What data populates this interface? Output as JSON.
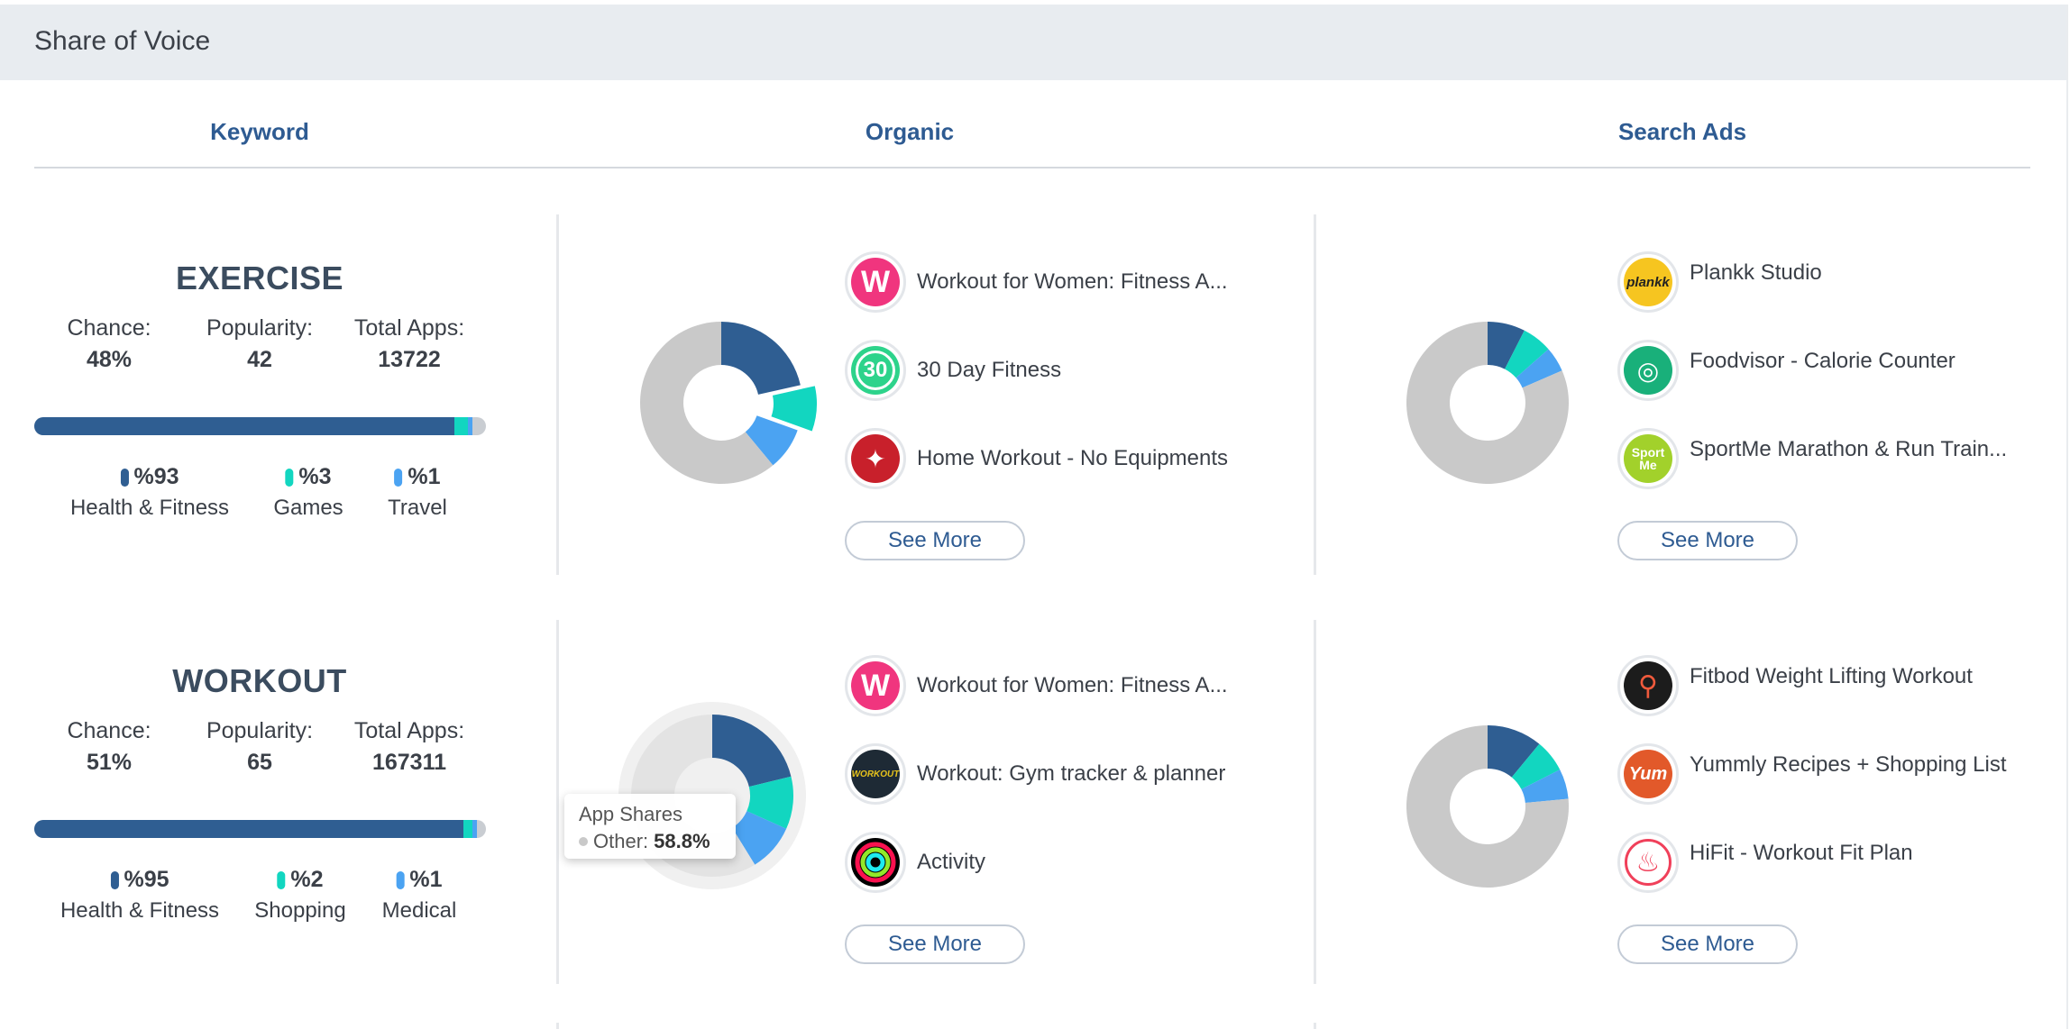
{
  "panel": {
    "title": "Share of Voice"
  },
  "columns": {
    "keyword": "Keyword",
    "organic": "Organic",
    "search_ads": "Search Ads"
  },
  "colors": {
    "dark_blue": "#2f5e92",
    "teal": "#12d6c0",
    "light_blue": "#4ba3f2",
    "grey": "#c9c9c9",
    "link": "#2e5b92"
  },
  "labels": {
    "chance": "Chance:",
    "popularity": "Popularity:",
    "total_apps": "Total Apps:",
    "see_more": "See More"
  },
  "tooltip": {
    "title": "App Shares",
    "label": "Other:",
    "value": "58.8%"
  },
  "rows": [
    {
      "keyword": "EXERCISE",
      "chance": "48%",
      "popularity": "42",
      "total_apps": "13722",
      "categories": [
        {
          "pct": "%93",
          "name": "Health & Fitness",
          "share": 0.93,
          "color": "#2f5e92"
        },
        {
          "pct": "%3",
          "name": "Games",
          "share": 0.03,
          "color": "#12d6c0"
        },
        {
          "pct": "%1",
          "name": "Travel",
          "share": 0.01,
          "color": "#4ba3f2"
        }
      ],
      "organic": {
        "shares": [
          21.5,
          9.0,
          8.5,
          61.0
        ],
        "exploded": 1,
        "apps": [
          {
            "name": "Workout for Women: Fitness A...",
            "icon": "workout-for-women-icon"
          },
          {
            "name": "30 Day Fitness",
            "icon": "30-day-fitness-icon"
          },
          {
            "name": "Home Workout - No Equipments",
            "icon": "home-workout-icon"
          }
        ]
      },
      "search_ads": {
        "shares": [
          7.5,
          6.0,
          5.0,
          81.5
        ],
        "apps": [
          {
            "name": "Plankk Studio",
            "icon": "plankk-studio-icon",
            "icon_text": "plankk"
          },
          {
            "name": "Foodvisor - Calorie Counter",
            "icon": "foodvisor-icon"
          },
          {
            "name": "SportMe Marathon & Run Train...",
            "icon": "sportme-icon",
            "icon_text": "Sport Me"
          }
        ]
      }
    },
    {
      "keyword": "WORKOUT",
      "chance": "51%",
      "popularity": "65",
      "total_apps": "167311",
      "categories": [
        {
          "pct": "%95",
          "name": "Health & Fitness",
          "share": 0.95,
          "color": "#2f5e92"
        },
        {
          "pct": "%2",
          "name": "Shopping",
          "share": 0.02,
          "color": "#12d6c0"
        },
        {
          "pct": "%1",
          "name": "Medical",
          "share": 0.01,
          "color": "#4ba3f2"
        }
      ],
      "organic": {
        "shares": [
          21.2,
          10.5,
          9.5,
          58.8
        ],
        "highlight": 3,
        "apps": [
          {
            "name": "Workout for Women: Fitness A...",
            "icon": "workout-for-women-icon"
          },
          {
            "name": "Workout: Gym tracker & planner",
            "icon": "workout-gym-tracker-icon",
            "icon_text": "WORKOUT"
          },
          {
            "name": "Activity",
            "icon": "activity-rings-icon"
          }
        ]
      },
      "search_ads": {
        "shares": [
          11.0,
          6.5,
          6.0,
          76.5
        ],
        "apps": [
          {
            "name": "Fitbod Weight Lifting Workout",
            "icon": "fitbod-icon"
          },
          {
            "name": "Yummly Recipes + Shopping List",
            "icon": "yummly-icon",
            "icon_text": "Yum"
          },
          {
            "name": "HiFit - Workout Fit Plan",
            "icon": "hifit-icon"
          }
        ]
      }
    }
  ]
}
